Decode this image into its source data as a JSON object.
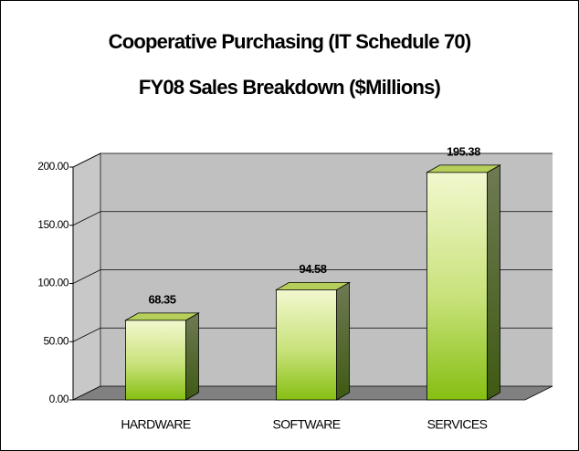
{
  "chart_data": {
    "type": "bar3d",
    "title": "Cooperative Purchasing (IT Schedule 70)",
    "subtitle": "FY08 Sales Breakdown ($Millions)",
    "categories": [
      "HARDWARE",
      "SOFTWARE",
      "SERVICES"
    ],
    "values": [
      68.35,
      94.58,
      195.38
    ],
    "color": "#8cc21a",
    "ylim": [
      0,
      200
    ],
    "yticks": [
      {
        "value": 0,
        "label": "0.00"
      },
      {
        "value": 50,
        "label": "50.00"
      },
      {
        "value": 100,
        "label": "100.00"
      },
      {
        "value": 150,
        "label": "150.00"
      },
      {
        "value": 200,
        "label": "200.00"
      }
    ],
    "grid": true
  }
}
